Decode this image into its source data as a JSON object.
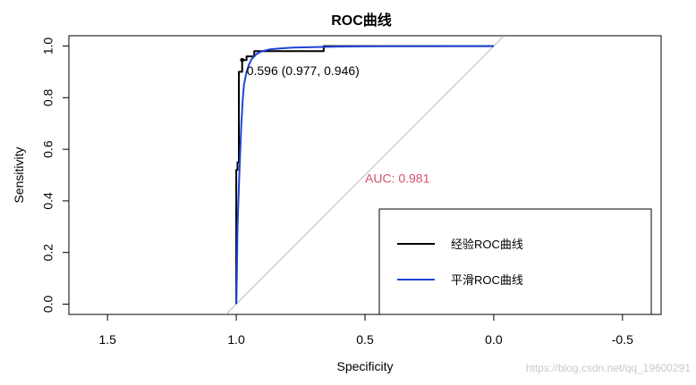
{
  "chart_data": {
    "type": "line",
    "title": "ROC曲线",
    "xlabel": "Specificity",
    "ylabel": "Sensitivity",
    "x_reversed": true,
    "xlim": [
      1.65,
      -0.65
    ],
    "ylim": [
      -0.04,
      1.04
    ],
    "xticks": [
      1.5,
      1.0,
      0.5,
      0.0,
      -0.5
    ],
    "xtick_labels": [
      "1.5",
      "1.0",
      "0.5",
      "0.0",
      "-0.5"
    ],
    "yticks": [
      0.0,
      0.2,
      0.4,
      0.6,
      0.8,
      1.0
    ],
    "ytick_labels": [
      "0.0",
      "0.2",
      "0.4",
      "0.6",
      "0.8",
      "1.0"
    ],
    "grid": false,
    "legend_position": "bottom-right",
    "diagonal_color": "#aaaaaa",
    "series": [
      {
        "name": "经验ROC曲线",
        "color": "#000000",
        "x": [
          1.0,
          1.0,
          0.995,
          0.995,
          0.99,
          0.99,
          0.977,
          0.977,
          0.96,
          0.96,
          0.93,
          0.93,
          0.66,
          0.66,
          0.0
        ],
        "y": [
          0.0,
          0.52,
          0.52,
          0.55,
          0.55,
          0.9,
          0.9,
          0.946,
          0.946,
          0.96,
          0.96,
          0.98,
          0.98,
          1.0,
          1.0
        ]
      },
      {
        "name": "平滑ROC曲线",
        "color": "#1f44d6",
        "x": [
          1.0,
          0.998,
          0.995,
          0.99,
          0.985,
          0.98,
          0.975,
          0.97,
          0.96,
          0.95,
          0.94,
          0.92,
          0.9,
          0.87,
          0.83,
          0.78,
          0.7,
          0.6,
          0.45,
          0.3,
          0.15,
          0.0
        ],
        "y": [
          0.0,
          0.1,
          0.3,
          0.45,
          0.58,
          0.7,
          0.79,
          0.85,
          0.9,
          0.93,
          0.95,
          0.97,
          0.98,
          0.987,
          0.991,
          0.994,
          0.996,
          0.998,
          0.999,
          0.9995,
          1.0,
          1.0
        ]
      }
    ],
    "threshold_point": {
      "x": 0.977,
      "y": 0.946,
      "label": "0.596 (0.977, 0.946)"
    },
    "auc": {
      "label": "AUC: 0.981",
      "color": "#d6506e",
      "x": 0.5,
      "y": 0.47
    }
  },
  "watermark": "https://blog.csdn.net/qq_19600291"
}
